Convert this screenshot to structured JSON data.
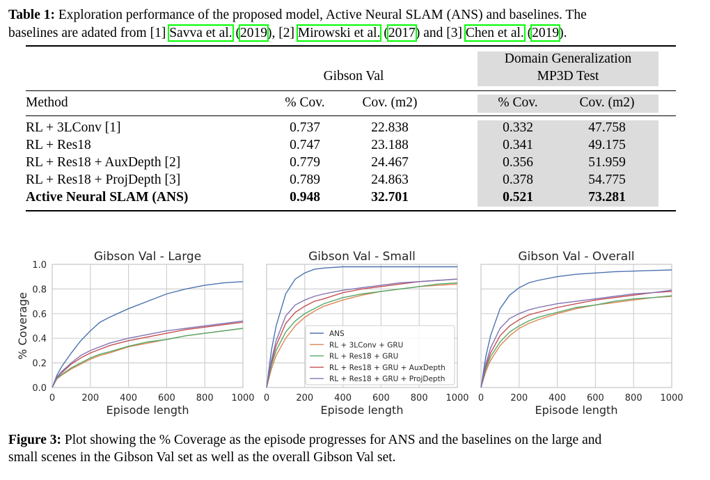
{
  "table": {
    "caption_label": "Table 1:",
    "caption_line1": "Exploration performance of the proposed model, Active Neural SLAM (ANS) and baselines.  The",
    "caption_line2_parts": [
      "baselines are adated from [1] ",
      "Savva et al.",
      " (",
      "2019",
      "), [2] ",
      "Mirowski et al.",
      " (",
      "2017",
      ") and [3] ",
      "Chen et al.",
      " (",
      "2019",
      ")."
    ],
    "group_gibson": "Gibson Val",
    "group_domain_line1": "Domain Generalization",
    "group_domain_line2": "MP3D Test",
    "col_method": "Method",
    "col_pcov": "% Cov.",
    "col_cov": "Cov. (m2)",
    "rows": [
      {
        "method": "RL + 3LConv [1]",
        "g_pcov": "0.737",
        "g_cov": "22.838",
        "m_pcov": "0.332",
        "m_cov": "47.758"
      },
      {
        "method": "RL + Res18",
        "g_pcov": "0.747",
        "g_cov": "23.188",
        "m_pcov": "0.341",
        "m_cov": "49.175"
      },
      {
        "method": "RL + Res18 + AuxDepth [2]",
        "g_pcov": "0.779",
        "g_cov": "24.467",
        "m_pcov": "0.356",
        "m_cov": "51.959"
      },
      {
        "method": "RL + Res18 + ProjDepth [3]",
        "g_pcov": "0.789",
        "g_cov": "24.863",
        "m_pcov": "0.378",
        "m_cov": "54.775"
      },
      {
        "method": "Active Neural SLAM (ANS)",
        "g_pcov": "0.948",
        "g_cov": "32.701",
        "m_pcov": "0.521",
        "m_cov": "73.281"
      }
    ],
    "shade_color": "#dcdcdc",
    "citation_box_color": "#00ff00"
  },
  "figure": {
    "caption_label": "Figure 3:",
    "caption_line1": "Plot showing the % Coverage as the episode progresses for ANS and the baselines on the large and",
    "caption_line2": "small scenes in the Gibson Val set as well as the overall Gibson Val set."
  },
  "chart_data": [
    {
      "type": "line",
      "title": "Gibson Val - Large",
      "xlabel": "Episode length",
      "ylabel": "% Coverage",
      "xlim": [
        0,
        1000
      ],
      "ylim": [
        0,
        1.0
      ],
      "grid": true,
      "xticks": [
        "0",
        "200",
        "400",
        "600",
        "800",
        "1000"
      ],
      "yticks": [
        "0.0",
        "0.2",
        "0.4",
        "0.6",
        "0.8",
        "1.0"
      ],
      "x": [
        0,
        25,
        50,
        100,
        150,
        200,
        250,
        300,
        400,
        500,
        600,
        700,
        800,
        900,
        1000
      ],
      "series": [
        {
          "name": "ANS",
          "color": "#4c72b0",
          "values": [
            0,
            0.1,
            0.17,
            0.28,
            0.38,
            0.46,
            0.53,
            0.57,
            0.64,
            0.7,
            0.76,
            0.8,
            0.83,
            0.85,
            0.86
          ]
        },
        {
          "name": "RL + 3LConv + GRU",
          "color": "#dd8452",
          "values": [
            0,
            0.07,
            0.1,
            0.15,
            0.19,
            0.23,
            0.26,
            0.28,
            0.33,
            0.36,
            0.39,
            0.42,
            0.44,
            0.46,
            0.48
          ]
        },
        {
          "name": "RL + Res18 + GRU",
          "color": "#55a868",
          "values": [
            0,
            0.075,
            0.105,
            0.16,
            0.2,
            0.24,
            0.27,
            0.29,
            0.335,
            0.37,
            0.39,
            0.42,
            0.44,
            0.46,
            0.48
          ]
        },
        {
          "name": "RL + Res18 + GRU + AuxDepth",
          "color": "#c44e52",
          "values": [
            0,
            0.08,
            0.12,
            0.19,
            0.24,
            0.28,
            0.31,
            0.34,
            0.38,
            0.41,
            0.44,
            0.47,
            0.49,
            0.51,
            0.53
          ]
        },
        {
          "name": "RL + Res18 + GRU + ProjDepth",
          "color": "#8172b3",
          "values": [
            0,
            0.085,
            0.13,
            0.2,
            0.26,
            0.3,
            0.33,
            0.36,
            0.4,
            0.43,
            0.46,
            0.48,
            0.5,
            0.52,
            0.54
          ]
        }
      ]
    },
    {
      "type": "line",
      "title": "Gibson Val - Small",
      "xlabel": "Episode length",
      "xlim": [
        0,
        1000
      ],
      "ylim": [
        0,
        1.0
      ],
      "grid": true,
      "legend": "lower-right",
      "xticks": [
        "0",
        "200",
        "400",
        "600",
        "800",
        "1000"
      ],
      "x": [
        0,
        25,
        50,
        100,
        150,
        200,
        250,
        300,
        400,
        500,
        600,
        700,
        800,
        900,
        1000
      ],
      "series": [
        {
          "name": "ANS",
          "color": "#4c72b0",
          "values": [
            0,
            0.3,
            0.5,
            0.76,
            0.88,
            0.93,
            0.96,
            0.97,
            0.98,
            0.98,
            0.98,
            0.98,
            0.98,
            0.98,
            0.98
          ]
        },
        {
          "name": "RL + 3LConv + GRU",
          "color": "#dd8452",
          "values": [
            0,
            0.15,
            0.26,
            0.4,
            0.5,
            0.57,
            0.62,
            0.66,
            0.71,
            0.75,
            0.78,
            0.8,
            0.82,
            0.83,
            0.84
          ]
        },
        {
          "name": "RL + Res18 + GRU",
          "color": "#55a868",
          "values": [
            0,
            0.18,
            0.3,
            0.45,
            0.54,
            0.6,
            0.64,
            0.68,
            0.73,
            0.76,
            0.78,
            0.8,
            0.82,
            0.84,
            0.85
          ]
        },
        {
          "name": "RL + Res18 + GRU + AuxDepth",
          "color": "#c44e52",
          "values": [
            0,
            0.2,
            0.34,
            0.52,
            0.61,
            0.66,
            0.7,
            0.72,
            0.77,
            0.8,
            0.82,
            0.84,
            0.86,
            0.87,
            0.88
          ]
        },
        {
          "name": "RL + Res18 + GRU + ProjDepth",
          "color": "#8172b3",
          "values": [
            0,
            0.22,
            0.38,
            0.58,
            0.67,
            0.71,
            0.74,
            0.76,
            0.79,
            0.81,
            0.83,
            0.85,
            0.86,
            0.87,
            0.88
          ]
        }
      ]
    },
    {
      "type": "line",
      "title": "Gibson Val - Overall",
      "xlabel": "Episode length",
      "xlim": [
        0,
        1000
      ],
      "ylim": [
        0,
        1.0
      ],
      "grid": true,
      "xticks": [
        "0",
        "200",
        "400",
        "600",
        "800",
        "1000"
      ],
      "x": [
        0,
        25,
        50,
        100,
        150,
        200,
        250,
        300,
        400,
        500,
        600,
        700,
        800,
        900,
        1000
      ],
      "series": [
        {
          "name": "ANS",
          "color": "#4c72b0",
          "values": [
            0,
            0.25,
            0.42,
            0.64,
            0.75,
            0.81,
            0.85,
            0.87,
            0.9,
            0.92,
            0.93,
            0.94,
            0.945,
            0.95,
            0.955
          ]
        },
        {
          "name": "RL + 3LConv + GRU",
          "color": "#dd8452",
          "values": [
            0,
            0.13,
            0.22,
            0.34,
            0.42,
            0.48,
            0.52,
            0.55,
            0.6,
            0.64,
            0.67,
            0.69,
            0.71,
            0.73,
            0.74
          ]
        },
        {
          "name": "RL + Res18 + GRU",
          "color": "#55a868",
          "values": [
            0,
            0.15,
            0.25,
            0.37,
            0.45,
            0.5,
            0.54,
            0.57,
            0.61,
            0.65,
            0.67,
            0.7,
            0.72,
            0.73,
            0.745
          ]
        },
        {
          "name": "RL + Res18 + GRU + AuxDepth",
          "color": "#c44e52",
          "values": [
            0,
            0.17,
            0.28,
            0.42,
            0.5,
            0.55,
            0.59,
            0.61,
            0.65,
            0.68,
            0.71,
            0.73,
            0.75,
            0.77,
            0.78
          ]
        },
        {
          "name": "RL + Res18 + GRU + ProjDepth",
          "color": "#8172b3",
          "values": [
            0,
            0.19,
            0.32,
            0.48,
            0.56,
            0.6,
            0.63,
            0.65,
            0.68,
            0.7,
            0.72,
            0.74,
            0.76,
            0.77,
            0.79
          ]
        }
      ]
    }
  ]
}
